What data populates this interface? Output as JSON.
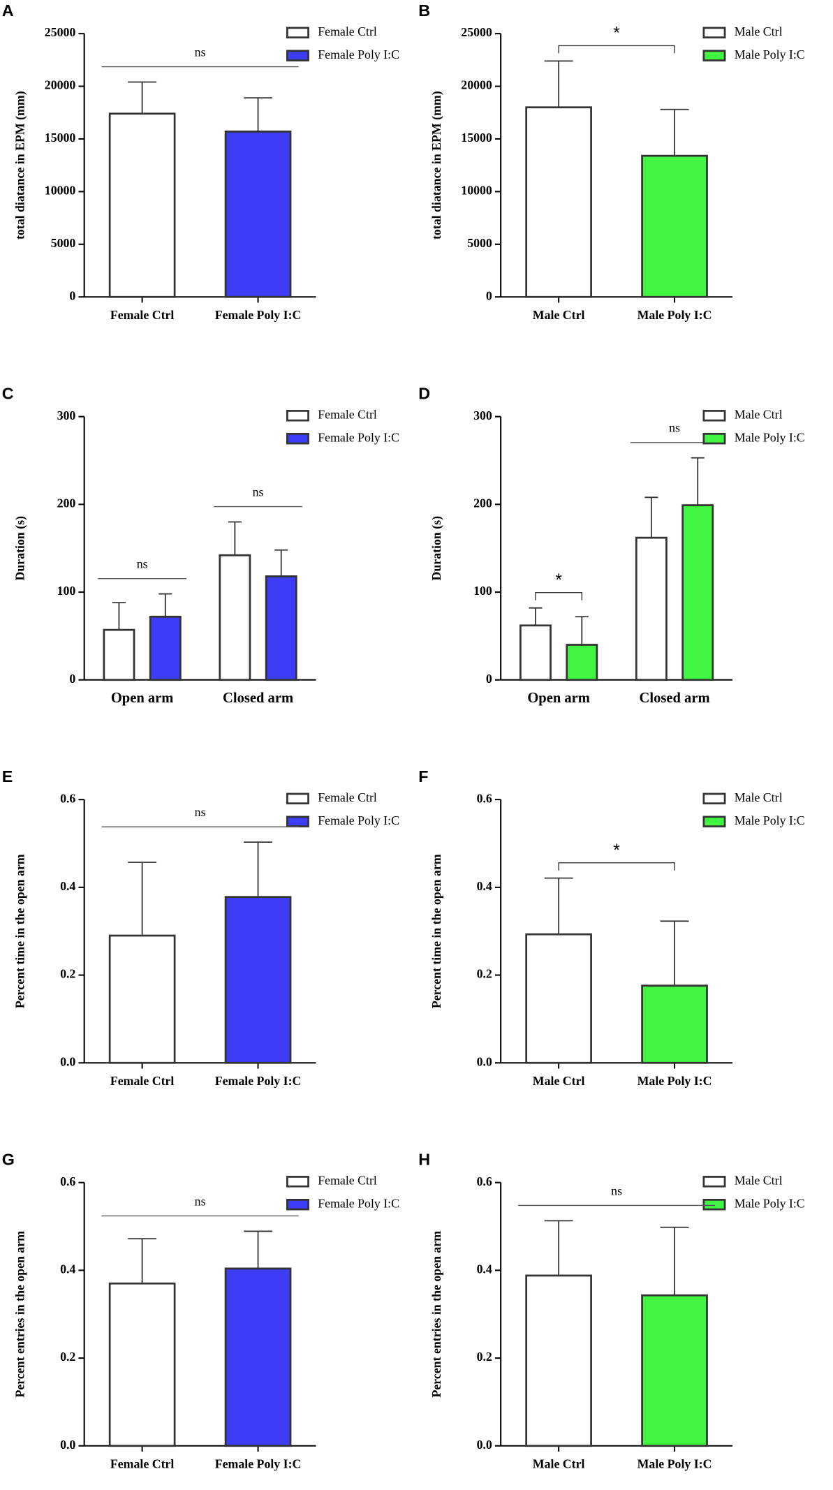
{
  "chart_data": [
    {
      "type": "bar",
      "panel": "A",
      "ylabel": "total diatance in EPM (mm)",
      "categories": [
        "Female Ctrl",
        "Female Poly I:C"
      ],
      "values": [
        17400,
        15700
      ],
      "errors": [
        3000,
        3200
      ],
      "colors": [
        "#ffffff",
        "#3d3df5"
      ],
      "legend": [
        "Female Ctrl",
        "Female Poly I:C"
      ],
      "annotation": "ns",
      "ylim": [
        0,
        25000
      ],
      "yticks": [
        0,
        5000,
        10000,
        15000,
        20000,
        25000
      ]
    },
    {
      "type": "bar",
      "panel": "B",
      "ylabel": "total diatance in EPM (mm)",
      "categories": [
        "Male Ctrl",
        "Male Poly I:C"
      ],
      "values": [
        18000,
        13400
      ],
      "errors": [
        4400,
        4400
      ],
      "colors": [
        "#ffffff",
        "#42f542"
      ],
      "legend": [
        "Male Ctrl",
        "Male Poly I:C"
      ],
      "annotation": "*",
      "ylim": [
        0,
        25000
      ],
      "yticks": [
        0,
        5000,
        10000,
        15000,
        20000,
        25000
      ]
    },
    {
      "type": "grouped_bar",
      "panel": "C",
      "ylabel": "Duration (s)",
      "categories": [
        "Open arm",
        "Closed arm"
      ],
      "series": [
        {
          "name": "Female Ctrl",
          "color": "#ffffff",
          "values": [
            57,
            142
          ],
          "errors": [
            31,
            38
          ]
        },
        {
          "name": "Female Poly I:C",
          "color": "#3d3df5",
          "values": [
            72,
            118
          ],
          "errors": [
            26,
            30
          ]
        }
      ],
      "annotations": [
        "ns",
        "ns"
      ],
      "ylim": [
        0,
        300
      ],
      "yticks": [
        0,
        100,
        200,
        300
      ]
    },
    {
      "type": "grouped_bar",
      "panel": "D",
      "ylabel": "Duration (s)",
      "categories": [
        "Open arm",
        "Closed arm"
      ],
      "series": [
        {
          "name": "Male Ctrl",
          "color": "#ffffff",
          "values": [
            62,
            162
          ],
          "errors": [
            20,
            46
          ]
        },
        {
          "name": "Male Poly I:C",
          "color": "#42f542",
          "values": [
            40,
            199
          ],
          "errors": [
            32,
            54
          ]
        }
      ],
      "annotations": [
        "*",
        "ns"
      ],
      "ylim": [
        0,
        300
      ],
      "yticks": [
        0,
        100,
        200,
        300
      ]
    },
    {
      "type": "bar",
      "panel": "E",
      "ylabel": "Percent time in the open arm",
      "categories": [
        "Female Ctrl",
        "Female Poly I:C"
      ],
      "values": [
        0.29,
        0.378
      ],
      "errors": [
        0.167,
        0.125
      ],
      "colors": [
        "#ffffff",
        "#3d3df5"
      ],
      "legend": [
        "Female Ctrl",
        "Female Poly I:C"
      ],
      "annotation": "ns",
      "ylim": [
        0,
        0.6
      ],
      "yticks": [
        {
          "value": 0,
          "label": "0.0"
        },
        0.2,
        0.4,
        0.6
      ]
    },
    {
      "type": "bar",
      "panel": "F",
      "ylabel": "Percent time in the open arm",
      "categories": [
        "Male Ctrl",
        "Male Poly I:C"
      ],
      "values": [
        0.293,
        0.176
      ],
      "errors": [
        0.128,
        0.147
      ],
      "colors": [
        "#ffffff",
        "#42f542"
      ],
      "legend": [
        "Male Ctrl",
        "Male Poly I:C"
      ],
      "annotation": "*",
      "ylim": [
        0,
        0.6
      ],
      "yticks": [
        {
          "value": 0,
          "label": "0.0"
        },
        0.2,
        0.4,
        0.6
      ]
    },
    {
      "type": "bar",
      "panel": "G",
      "ylabel": "Percent entries in the open arm",
      "categories": [
        "Female Ctrl",
        "Female Poly I:C"
      ],
      "values": [
        0.37,
        0.404
      ],
      "errors": [
        0.102,
        0.085
      ],
      "colors": [
        "#ffffff",
        "#3d3df5"
      ],
      "legend": [
        "Female Ctrl",
        "Female Poly I:C"
      ],
      "annotation": "ns",
      "ylim": [
        0,
        0.6
      ],
      "yticks": [
        {
          "value": 0,
          "label": "0.0"
        },
        0.2,
        0.4,
        0.6
      ]
    },
    {
      "type": "bar",
      "panel": "H",
      "ylabel": "Percent entries in the open arm",
      "categories": [
        "Male Ctrl",
        "Male Poly I:C"
      ],
      "values": [
        0.388,
        0.343
      ],
      "errors": [
        0.125,
        0.155
      ],
      "colors": [
        "#ffffff",
        "#42f542"
      ],
      "legend": [
        "Male Ctrl",
        "Male Poly I:C"
      ],
      "annotation": "ns",
      "ylim": [
        0,
        0.6
      ],
      "yticks": [
        {
          "value": 0,
          "label": "0.0"
        },
        0.2,
        0.4,
        0.6
      ]
    }
  ]
}
